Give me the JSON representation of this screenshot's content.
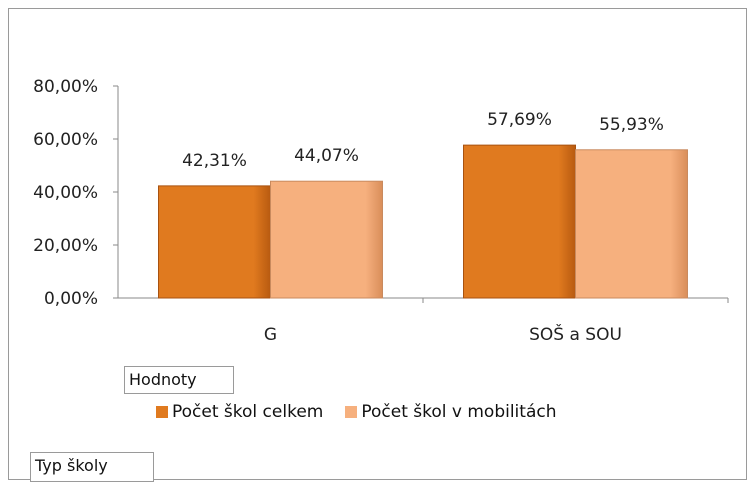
{
  "chart_data": {
    "type": "bar",
    "title": "",
    "xlabel": "",
    "ylabel": "",
    "categories": [
      "G",
      "SOŠ a SOU"
    ],
    "series": [
      {
        "name": "Počet škol celkem",
        "values": [
          42.31,
          57.69
        ],
        "color": "#E07A1F"
      },
      {
        "name": "Počet škol v mobilitách",
        "values": [
          44.07,
          55.93
        ],
        "color": "#F6B07E"
      }
    ],
    "ylim": [
      0,
      80
    ],
    "yticks": [
      0,
      20,
      40,
      60,
      80
    ],
    "ytick_labels": [
      "0,00%",
      "20,00%",
      "40,00%",
      "60,00%",
      "80,00%"
    ],
    "data_labels": [
      [
        "42,31%",
        "57,69%"
      ],
      [
        "44,07%",
        "55,93%"
      ]
    ],
    "grid": false,
    "legend_position": "bottom"
  },
  "field_buttons": {
    "values_label": "Hodnoty",
    "category_label": "Typ školy"
  }
}
